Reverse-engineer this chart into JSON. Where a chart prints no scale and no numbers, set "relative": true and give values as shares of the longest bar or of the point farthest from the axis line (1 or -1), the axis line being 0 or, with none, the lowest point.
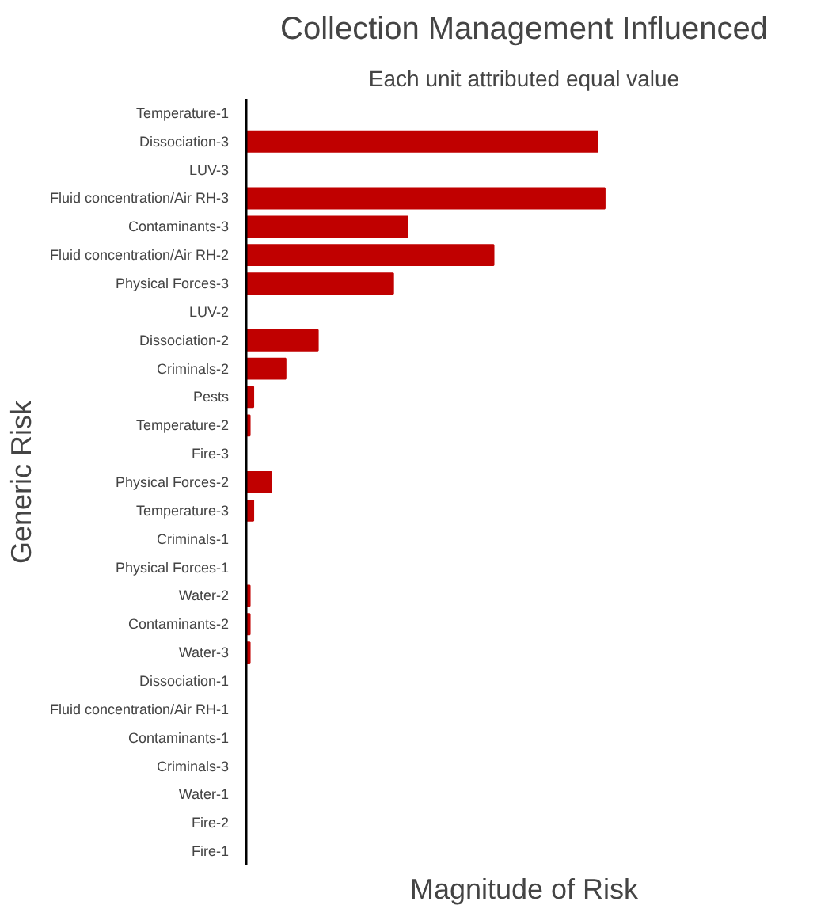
{
  "chart_data": {
    "type": "bar",
    "orientation": "horizontal",
    "relative": true,
    "title": "Collection Management Influenced",
    "subtitle": "Each unit attributed equal value",
    "xlabel": "Magnitude of Risk",
    "ylabel": "Generic Risk",
    "color": "#c00000",
    "grid": false,
    "categories": [
      "Temperature-1",
      "Dissociation-3",
      "LUV-3",
      "Fluid concentration/Air RH-3",
      "Contaminants-3",
      "Fluid concentration/Air RH-2",
      "Physical Forces-3",
      "LUV-2",
      "Dissociation-2",
      "Criminals-2",
      "Pests",
      "Temperature-2",
      "Fire-3",
      "Physical Forces-2",
      "Temperature-3",
      "Criminals-1",
      "Physical Forces-1",
      "Water-2",
      "Contaminants-2",
      "Water-3",
      "Dissociation-1",
      "Fluid concentration/Air RH-1",
      "Contaminants-1",
      "Criminals-3",
      "Water-1",
      "Fire-2",
      "Fire-1"
    ],
    "values": [
      0,
      0.98,
      0,
      1,
      0.45,
      0.69,
      0.41,
      0,
      0.2,
      0.11,
      0.02,
      0.01,
      0,
      0.07,
      0.02,
      0,
      0,
      0.01,
      0.01,
      0.01,
      0,
      0,
      0,
      0,
      0,
      0,
      0
    ]
  }
}
